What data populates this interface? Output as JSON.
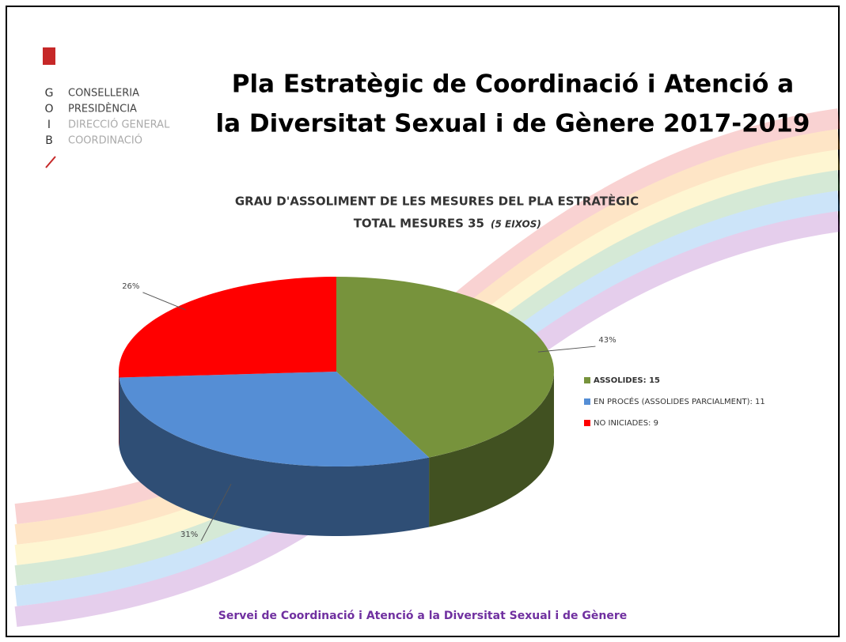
{
  "logo": {
    "letters": [
      "G",
      "O",
      "I",
      "B"
    ],
    "lines": [
      "CONSELLERIA",
      "PRESIDÈNCIA",
      "DIRECCIÓ GENERAL",
      "COORDINACIÓ"
    ]
  },
  "header": {
    "title_lines": [
      "Pla Estratègic de Coordinació i Atenció a",
      "la Diversitat Sexual i de Gènere 2017-2019"
    ]
  },
  "chart_data": {
    "type": "pie",
    "three_d": true,
    "title_lines": [
      "GRAU D'ASSOLIMENT DE LES MESURES DEL PLA ESTRATÈGIC",
      "TOTAL MESURES 35"
    ],
    "subtitle": "(5 EIXOS)",
    "categories": [
      "ASSOLIDES: 15",
      "EN PROCÉS (ASSOLIDES PARCIALMENT): 11",
      "NO INICIADES: 9"
    ],
    "values": [
      43,
      31,
      26
    ],
    "value_labels": [
      "43%",
      "31%",
      "26%"
    ],
    "colors": [
      "#77933c",
      "#558ed5",
      "#ff0000"
    ],
    "legend": "right"
  },
  "footer": {
    "text": "Servei de Coordinació i Atenció a la Diversitat Sexual i de Gènere"
  }
}
